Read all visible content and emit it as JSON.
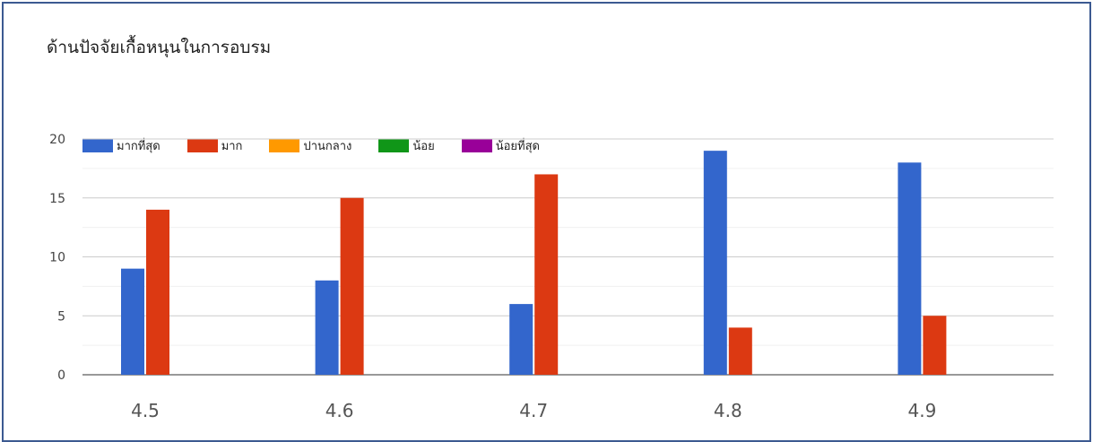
{
  "chart_data": {
    "type": "bar",
    "title": "ด้านปัจจัยเกื้อหนุนในการอบรม",
    "categories": [
      "4.5",
      "4.6",
      "4.7",
      "4.8",
      "4.9"
    ],
    "series": [
      {
        "name": "มากที่สุด",
        "color": "#3366cc",
        "values": [
          9,
          8,
          6,
          19,
          18
        ]
      },
      {
        "name": "มาก",
        "color": "#dc3912",
        "values": [
          14,
          15,
          17,
          4,
          5
        ]
      },
      {
        "name": "ปานกลาง",
        "color": "#ff9900",
        "values": [
          0,
          0,
          0,
          0,
          0
        ]
      },
      {
        "name": "น้อย",
        "color": "#109618",
        "values": [
          0,
          0,
          0,
          0,
          0
        ]
      },
      {
        "name": "น้อยที่สุด",
        "color": "#990099",
        "values": [
          0,
          0,
          0,
          0,
          0
        ]
      }
    ],
    "yticks": [
      "0",
      "5",
      "10",
      "15",
      "20"
    ],
    "ylim": [
      0,
      20
    ],
    "xlabel": "",
    "ylabel": "",
    "grid": true,
    "legend_position": "top-left"
  }
}
